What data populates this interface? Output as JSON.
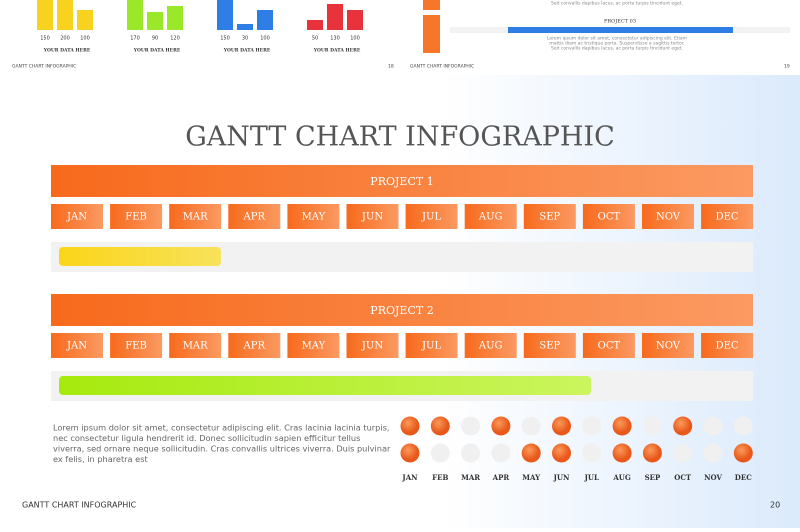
{
  "thumbnails": [
    {
      "groups": [
        {
          "values": [
            150,
            200,
            100
          ],
          "caption": "YOUR DATA HERE",
          "color": "#f7d21e"
        },
        {
          "values": [
            170,
            90,
            120
          ],
          "caption": "YOUR DATA HERE",
          "color": "#9be82a"
        },
        {
          "values": [
            150,
            30,
            100
          ],
          "caption": "YOUR DATA HERE",
          "color": "#2f7ee6"
        },
        {
          "values": [
            50,
            130,
            100
          ],
          "caption": "YOUR DATA HERE",
          "color": "#e8323c"
        }
      ],
      "footer": "GANTT CHART INFOGRAPHIC",
      "page": "18"
    },
    {
      "top_text": "Sed convallis dapibus lacus, ac porta turpis tincidunt eget.",
      "project": "PROJECT 03",
      "lines": [
        "Lorem ipsum dolor sit amet, consectetur adipiscing elit. Etiam",
        "mattis diam ac tristique porta. Suspendisse a sagittis tortor.",
        "Sed convallis dapibus lacus, ac porta turpis tincidunt eget."
      ],
      "footer": "GANTT CHART INFOGRAPHIC",
      "page": "19"
    }
  ],
  "title": "GANTT CHART INFOGRAPHIC",
  "months": [
    "JAN",
    "FEB",
    "MAR",
    "APR",
    "MAY",
    "JUN",
    "JUL",
    "AUG",
    "SEP",
    "OCT",
    "NOV",
    "DEC"
  ],
  "projects": [
    {
      "name": "PROJECT 1",
      "start": 0,
      "end": 2.8,
      "color": "yellow"
    },
    {
      "name": "PROJECT 2",
      "start": 0,
      "end": 9.2,
      "color": "green"
    }
  ],
  "body": [
    "Lorem ipsum dolor sit amet, consectetur adipiscing elit. Cras lacinia lacinia turpis,",
    "nec consectetur ligula hendrerit id. Donec sollicitudin sapien efficitur tellus",
    "viverra, sed ornare neque sollicitudin. Cras convallis ultrices viverra. Duis pulvinar",
    "ex felis, in pharetra est"
  ],
  "activity": [
    [
      true,
      true,
      false,
      true,
      false,
      true,
      false,
      true,
      false,
      true,
      false,
      false
    ],
    [
      true,
      false,
      false,
      false,
      true,
      true,
      false,
      true,
      true,
      false,
      false,
      true
    ]
  ],
  "footer": "GANTT CHART INFOGRAPHIC",
  "page": "20"
}
